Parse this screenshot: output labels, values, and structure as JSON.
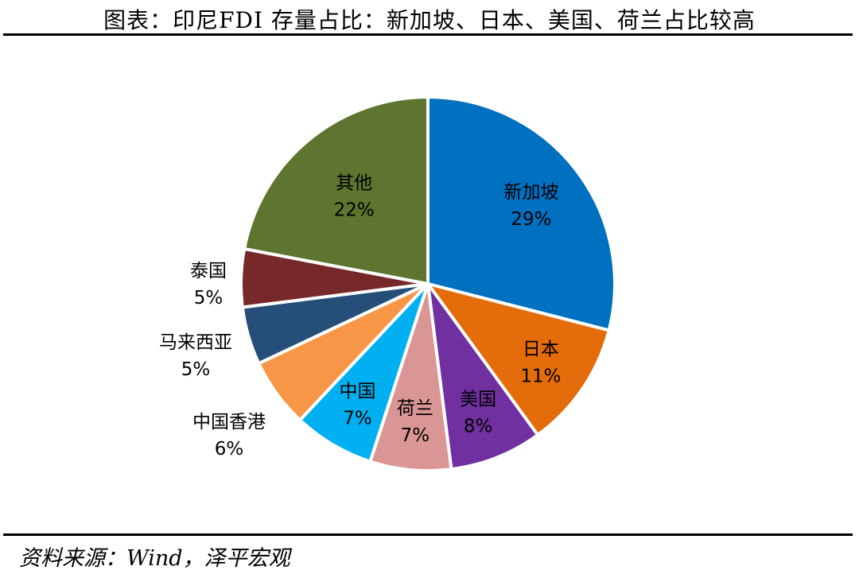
{
  "title": "图表：印尼FDI 存量占比：新加坡、日本、美国、荷兰占比较高",
  "source": "资料来源：Wind，泽平宏观",
  "chart_data": {
    "type": "pie",
    "title": "图表：印尼FDI 存量占比：新加坡、日本、美国、荷兰占比较高",
    "start_angle_deg": 0,
    "direction": "clockwise",
    "slices": [
      {
        "label": "新加坡",
        "value": 29,
        "value_label": "29%",
        "color": "#0070C0"
      },
      {
        "label": "日本",
        "value": 11,
        "value_label": "11%",
        "color": "#E46C0A"
      },
      {
        "label": "美国",
        "value": 8,
        "value_label": "8%",
        "color": "#7030A0"
      },
      {
        "label": "荷兰",
        "value": 7,
        "value_label": "7%",
        "color": "#D99694"
      },
      {
        "label": "中国",
        "value": 7,
        "value_label": "7%",
        "color": "#00B0F0"
      },
      {
        "label": "中国香港",
        "value": 6,
        "value_label": "6%",
        "color": "#F79646"
      },
      {
        "label": "马来西亚",
        "value": 5,
        "value_label": "5%",
        "color": "#254E79"
      },
      {
        "label": "泰国",
        "value": 5,
        "value_label": "5%",
        "color": "#772829"
      },
      {
        "label": "其他",
        "value": 22,
        "value_label": "22%",
        "color": "#5E7530"
      }
    ]
  }
}
